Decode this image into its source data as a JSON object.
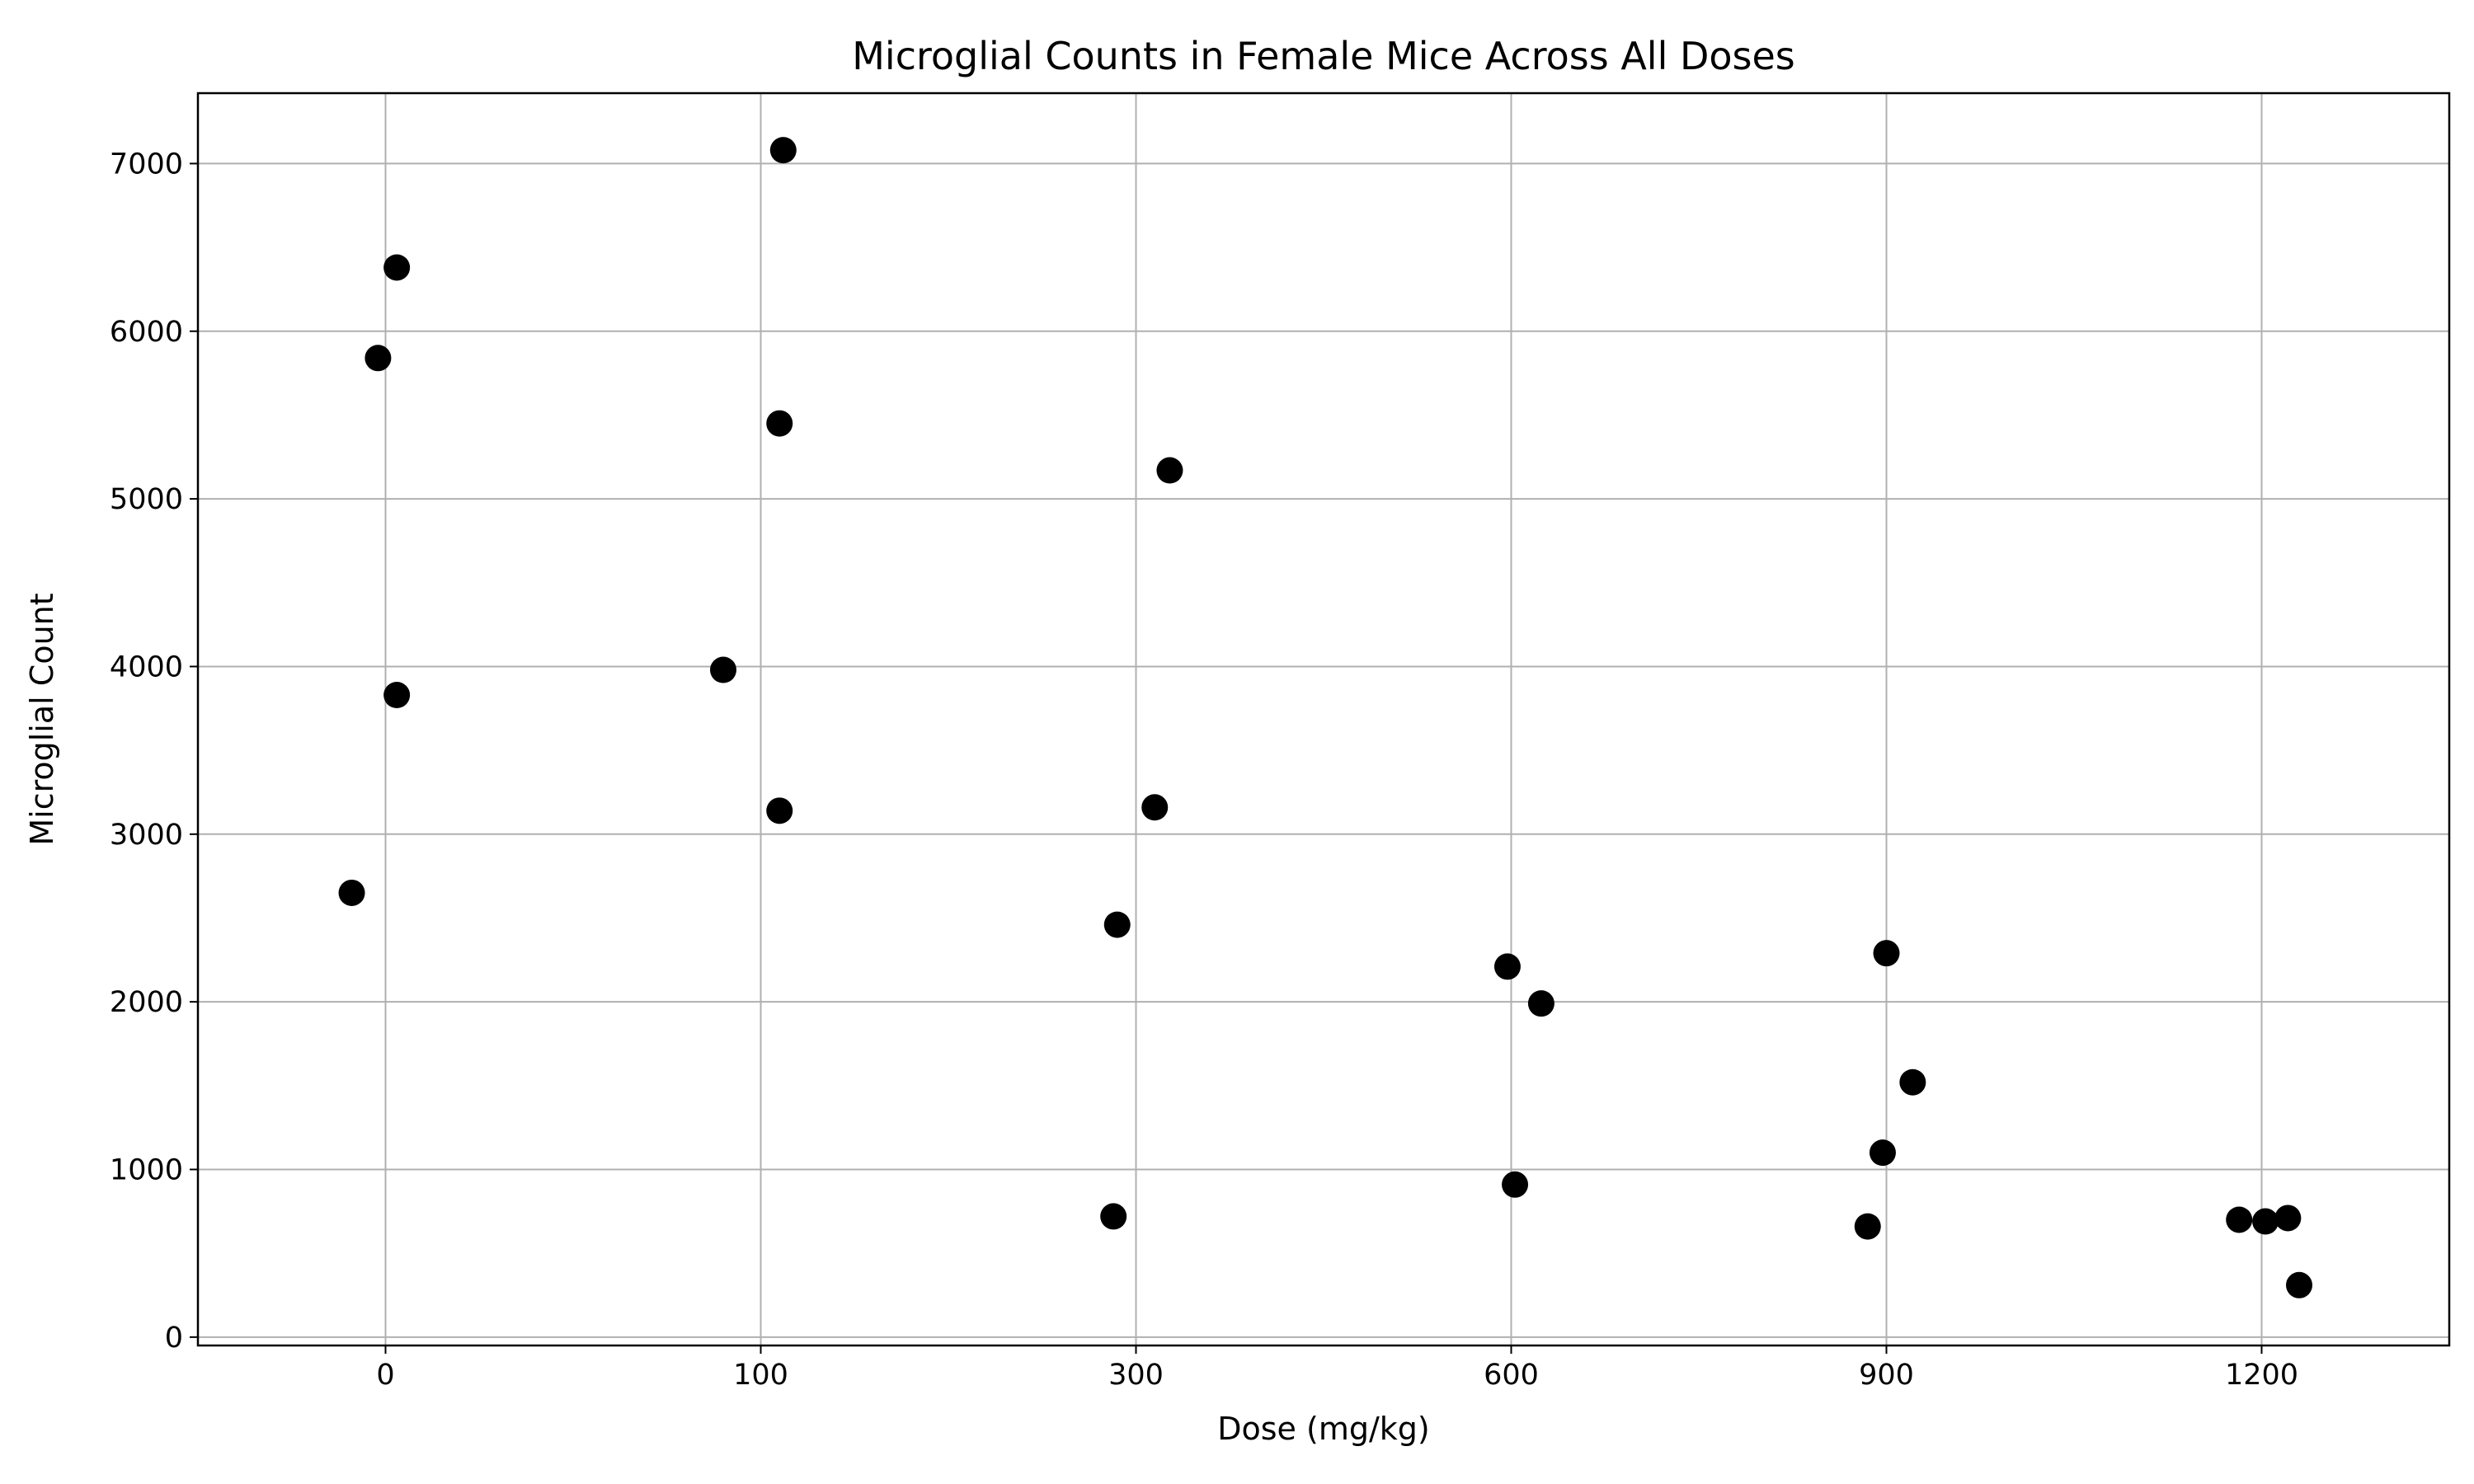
{
  "chart_data": {
    "type": "scatter",
    "title": "Microglial Counts in Female Mice Across All Doses",
    "xlabel": "Dose (mg/kg)",
    "ylabel": "Microglial Count",
    "x_axis_kind": "categorical",
    "x_categories": [
      "0",
      "100",
      "300",
      "600",
      "900",
      "1200"
    ],
    "x_category_range": [
      -0.5,
      5.5
    ],
    "ylim": [
      -50,
      7420
    ],
    "y_ticks": [
      0,
      1000,
      2000,
      3000,
      4000,
      5000,
      6000,
      7000
    ],
    "grid": true,
    "legend": "none",
    "marker_color": "#000000",
    "series": [
      {
        "points": [
          {
            "dose": "0",
            "jitter": -0.09,
            "y": 2650
          },
          {
            "dose": "0",
            "jitter": -0.02,
            "y": 5840
          },
          {
            "dose": "0",
            "jitter": 0.03,
            "y": 6380
          },
          {
            "dose": "0",
            "jitter": 0.03,
            "y": 3830
          },
          {
            "dose": "100",
            "jitter": -0.1,
            "y": 3980
          },
          {
            "dose": "100",
            "jitter": 0.05,
            "y": 5450
          },
          {
            "dose": "100",
            "jitter": 0.05,
            "y": 3140
          },
          {
            "dose": "100",
            "jitter": 0.06,
            "y": 7080
          },
          {
            "dose": "300",
            "jitter": -0.06,
            "y": 720
          },
          {
            "dose": "300",
            "jitter": -0.05,
            "y": 2460
          },
          {
            "dose": "300",
            "jitter": 0.05,
            "y": 3160
          },
          {
            "dose": "300",
            "jitter": 0.09,
            "y": 5170
          },
          {
            "dose": "600",
            "jitter": -0.01,
            "y": 2210
          },
          {
            "dose": "600",
            "jitter": 0.01,
            "y": 910
          },
          {
            "dose": "600",
            "jitter": 0.08,
            "y": 1990
          },
          {
            "dose": "900",
            "jitter": -0.05,
            "y": 660
          },
          {
            "dose": "900",
            "jitter": -0.01,
            "y": 1100
          },
          {
            "dose": "900",
            "jitter": 0.0,
            "y": 2290
          },
          {
            "dose": "900",
            "jitter": 0.07,
            "y": 1520
          },
          {
            "dose": "1200",
            "jitter": -0.06,
            "y": 700
          },
          {
            "dose": "1200",
            "jitter": 0.01,
            "y": 690
          },
          {
            "dose": "1200",
            "jitter": 0.07,
            "y": 710
          },
          {
            "dose": "1200",
            "jitter": 0.1,
            "y": 310
          }
        ]
      }
    ]
  }
}
